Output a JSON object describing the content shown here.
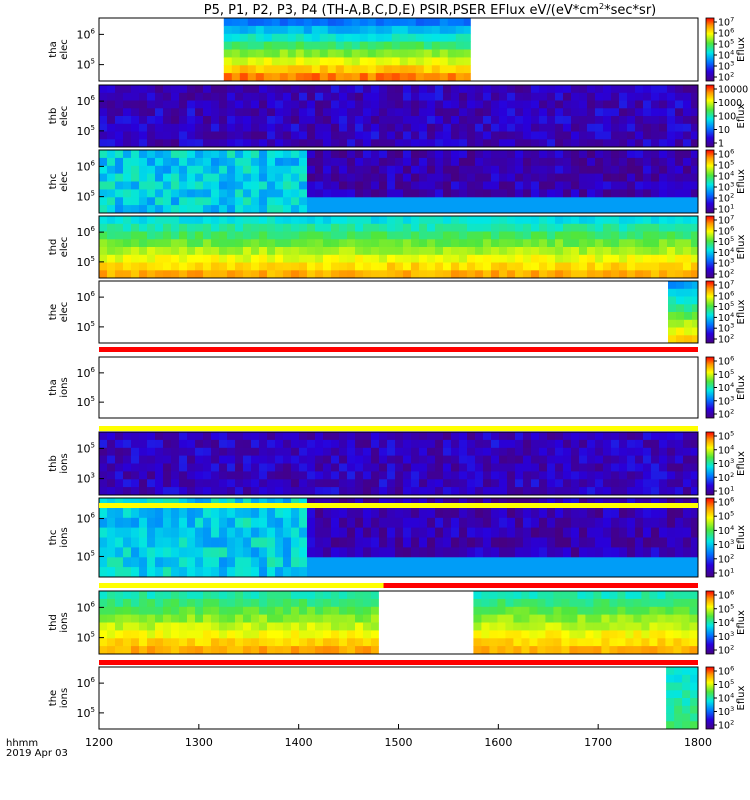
{
  "chart_data": {
    "type": "heatmap",
    "title": "P5, P1, P2, P3, P4 (TH-A,B,C,D,E) PSIR,PSER EFlux eV/(eV*cm",
    "title_sup": "2",
    "title_tail": "*sec*sr)",
    "x_unit_label": "hhmm",
    "date_label": "2019 Apr 03",
    "xlim": [
      1200,
      1800
    ],
    "x_ticks": [
      "1200",
      "1300",
      "1400",
      "1500",
      "1600",
      "1700",
      "1800"
    ],
    "colorbar_label": "Eflux",
    "panels": [
      {
        "probe": "tha",
        "species": "elec",
        "y_ticks": [
          {
            "b": "10",
            "e": "6"
          },
          {
            "b": "10",
            "e": "5"
          }
        ],
        "cbar_ticks": [
          {
            "b": "10",
            "e": "7"
          },
          {
            "b": "10",
            "e": "6"
          },
          {
            "b": "10",
            "e": "5"
          },
          {
            "b": "10",
            "e": "4"
          },
          {
            "b": "10",
            "e": "3"
          },
          {
            "b": "10",
            "e": "2"
          }
        ],
        "coverage": [
          [
            1325,
            1572
          ]
        ],
        "pattern": "smooth",
        "level_top": 0.3,
        "level_bottom": 0.9
      },
      {
        "probe": "thb",
        "species": "elec",
        "y_ticks": [
          {
            "b": "10",
            "e": "6"
          },
          {
            "b": "10",
            "e": "5"
          }
        ],
        "cbar_ticks": [
          {
            "b": "10000",
            "e": ""
          },
          {
            "b": "1000",
            "e": ""
          },
          {
            "b": "100",
            "e": ""
          },
          {
            "b": "10",
            "e": ""
          },
          {
            "b": "1",
            "e": ""
          }
        ],
        "coverage": [
          [
            1200,
            1800
          ]
        ],
        "pattern": "noise",
        "level_top": 0.1,
        "level_bottom": 0.15
      },
      {
        "probe": "thc",
        "species": "elec",
        "y_ticks": [
          {
            "b": "10",
            "e": "6"
          },
          {
            "b": "10",
            "e": "5"
          }
        ],
        "cbar_ticks": [
          {
            "b": "10",
            "e": "6"
          },
          {
            "b": "10",
            "e": "5"
          },
          {
            "b": "10",
            "e": "4"
          },
          {
            "b": "10",
            "e": "3"
          },
          {
            "b": "10",
            "e": "2"
          },
          {
            "b": "10",
            "e": "1"
          }
        ],
        "coverage": [
          [
            1200,
            1800
          ]
        ],
        "pattern": "noise_split",
        "split_at": 1402,
        "level_top": 0.4,
        "level_bottom": 0.4
      },
      {
        "probe": "thd",
        "species": "elec",
        "y_ticks": [
          {
            "b": "10",
            "e": "6"
          },
          {
            "b": "10",
            "e": "5"
          }
        ],
        "cbar_ticks": [
          {
            "b": "10",
            "e": "7"
          },
          {
            "b": "10",
            "e": "6"
          },
          {
            "b": "10",
            "e": "5"
          },
          {
            "b": "10",
            "e": "4"
          },
          {
            "b": "10",
            "e": "3"
          },
          {
            "b": "10",
            "e": "2"
          }
        ],
        "coverage": [
          [
            1200,
            1800
          ]
        ],
        "pattern": "smooth",
        "level_top": 0.45,
        "level_bottom": 0.85
      },
      {
        "probe": "the",
        "species": "elec",
        "y_ticks": [
          {
            "b": "10",
            "e": "6"
          },
          {
            "b": "10",
            "e": "5"
          }
        ],
        "cbar_ticks": [
          {
            "b": "10",
            "e": "7"
          },
          {
            "b": "10",
            "e": "6"
          },
          {
            "b": "10",
            "e": "5"
          },
          {
            "b": "10",
            "e": "4"
          },
          {
            "b": "10",
            "e": "3"
          },
          {
            "b": "10",
            "e": "2"
          }
        ],
        "coverage": [
          [
            1770,
            1800
          ]
        ],
        "pattern": "smooth",
        "level_top": 0.35,
        "level_bottom": 0.8
      },
      {
        "probe": "tha",
        "species": "ions",
        "y_ticks": [
          {
            "b": "10",
            "e": "6"
          },
          {
            "b": "10",
            "e": "5"
          }
        ],
        "cbar_ticks": [
          {
            "b": "10",
            "e": "6"
          },
          {
            "b": "10",
            "e": "5"
          },
          {
            "b": "10",
            "e": "4"
          },
          {
            "b": "10",
            "e": "3"
          },
          {
            "b": "10",
            "e": "2"
          }
        ],
        "coverage": [],
        "pattern": "none",
        "level_top": 0,
        "level_bottom": 0
      },
      {
        "probe": "thb",
        "species": "ions",
        "y_ticks": [
          {
            "b": "10",
            "e": "5"
          },
          {
            "b": "10",
            "e": "3"
          }
        ],
        "cbar_ticks": [
          {
            "b": "10",
            "e": "5"
          },
          {
            "b": "10",
            "e": "4"
          },
          {
            "b": "10",
            "e": "3"
          },
          {
            "b": "10",
            "e": "2"
          },
          {
            "b": "10",
            "e": "1"
          }
        ],
        "coverage": [
          [
            1200,
            1800
          ]
        ],
        "pattern": "noise",
        "level_top": 0.1,
        "level_bottom": 0.15
      },
      {
        "probe": "thc",
        "species": "ions",
        "y_ticks": [
          {
            "b": "10",
            "e": "6"
          },
          {
            "b": "10",
            "e": "5"
          }
        ],
        "cbar_ticks": [
          {
            "b": "10",
            "e": "6"
          },
          {
            "b": "10",
            "e": "5"
          },
          {
            "b": "10",
            "e": "4"
          },
          {
            "b": "10",
            "e": "3"
          },
          {
            "b": "10",
            "e": "2"
          },
          {
            "b": "10",
            "e": "1"
          }
        ],
        "coverage": [
          [
            1200,
            1800
          ]
        ],
        "pattern": "noise_split",
        "split_at": 1402,
        "level_top": 0.4,
        "level_bottom": 0.4
      },
      {
        "probe": "thd",
        "species": "ions",
        "y_ticks": [
          {
            "b": "10",
            "e": "6"
          },
          {
            "b": "10",
            "e": "5"
          }
        ],
        "cbar_ticks": [
          {
            "b": "10",
            "e": "6"
          },
          {
            "b": "10",
            "e": "5"
          },
          {
            "b": "10",
            "e": "4"
          },
          {
            "b": "10",
            "e": "3"
          },
          {
            "b": "10",
            "e": "2"
          }
        ],
        "coverage": [
          [
            1200,
            1480
          ],
          [
            1575,
            1800
          ]
        ],
        "pattern": "smooth",
        "level_top": 0.5,
        "level_bottom": 0.85
      },
      {
        "probe": "the",
        "species": "ions",
        "y_ticks": [
          {
            "b": "10",
            "e": "6"
          },
          {
            "b": "10",
            "e": "5"
          }
        ],
        "cbar_ticks": [
          {
            "b": "10",
            "e": "6"
          },
          {
            "b": "10",
            "e": "5"
          },
          {
            "b": "10",
            "e": "4"
          },
          {
            "b": "10",
            "e": "3"
          },
          {
            "b": "10",
            "e": "2"
          }
        ],
        "coverage": [
          [
            1768,
            1800
          ]
        ],
        "pattern": "smooth",
        "level_top": 0.45,
        "level_bottom": 0.55
      }
    ],
    "separator_bars": [
      {
        "after_panel": 4,
        "segments": [
          {
            "from": 1200,
            "to": 1800,
            "color": "#ff0000"
          }
        ]
      },
      {
        "after_panel": 5,
        "segments": [
          {
            "from": 1200,
            "to": 1800,
            "color": "#ffff00"
          }
        ]
      },
      {
        "after_panel": 6,
        "segments": [
          {
            "from": 1200,
            "to": 1800,
            "color": "#ffff00"
          }
        ]
      },
      {
        "after_panel": 7,
        "segments": [
          {
            "from": 1200,
            "to": 1485,
            "color": "#ffff00"
          },
          {
            "from": 1485,
            "to": 1800,
            "color": "#ff0000"
          }
        ]
      },
      {
        "after_panel": 8,
        "segments": [
          {
            "from": 1200,
            "to": 1800,
            "color": "#ff0000"
          }
        ]
      }
    ]
  }
}
